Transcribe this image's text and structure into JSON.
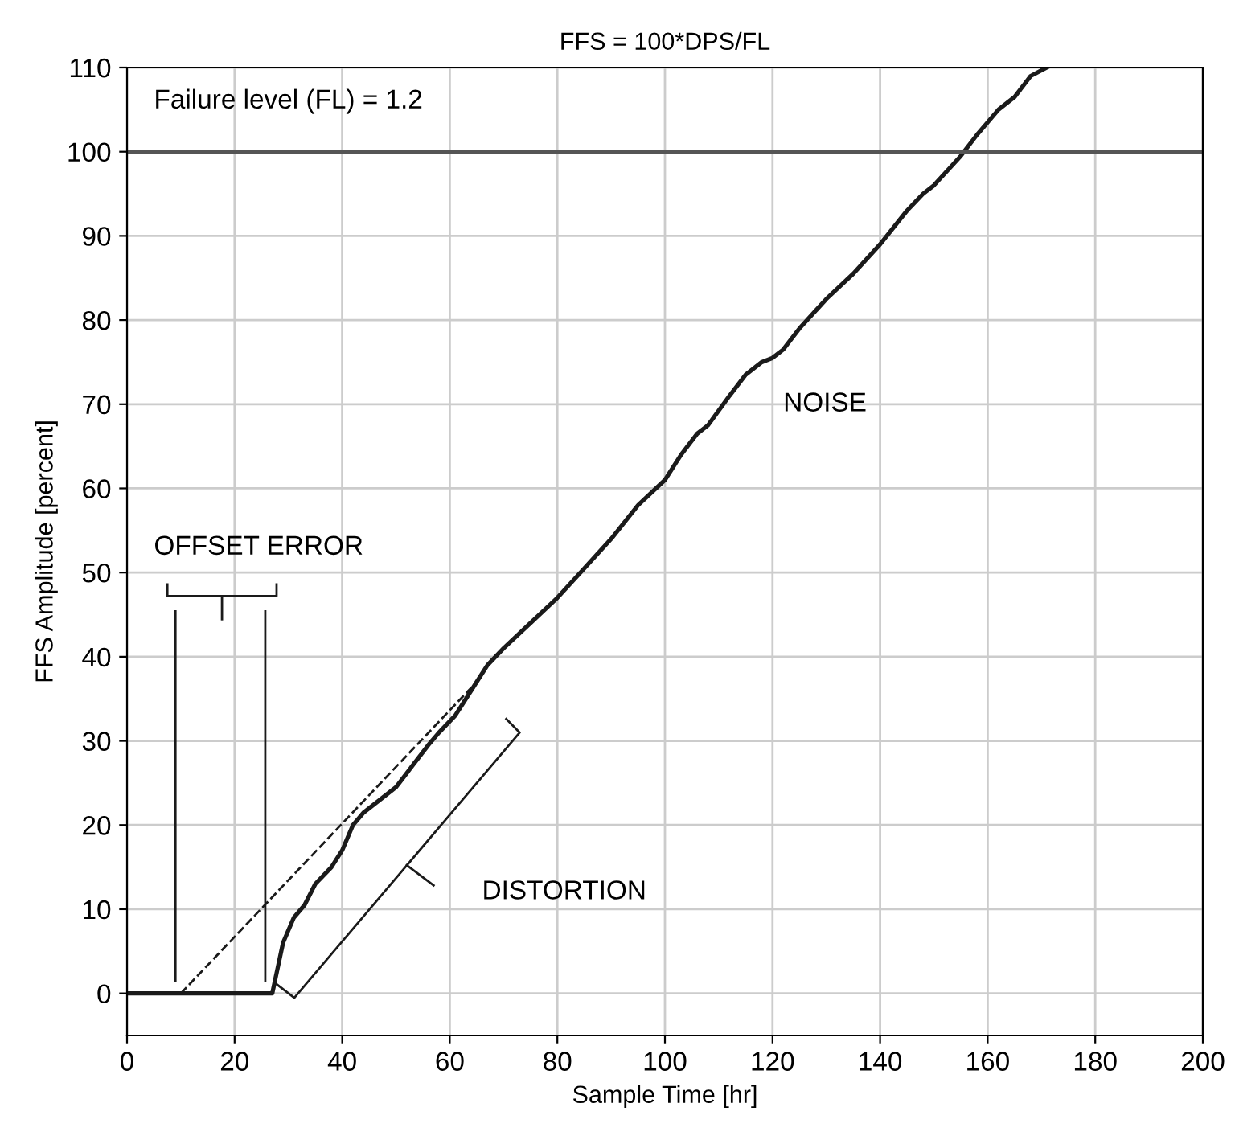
{
  "chart_data": {
    "type": "line",
    "title": "FFS = 100*DPS/FL",
    "xlabel": "Sample Time [hr]",
    "ylabel": "FFS Amplitude [percent]",
    "xlim": [
      0,
      200
    ],
    "ylim": [
      -5,
      110
    ],
    "xticks": [
      0,
      20,
      40,
      60,
      80,
      100,
      120,
      140,
      160,
      180,
      200
    ],
    "yticks": [
      0,
      10,
      20,
      30,
      40,
      50,
      60,
      70,
      80,
      90,
      100,
      110
    ],
    "grid": true,
    "marker": "none",
    "series": [
      {
        "color": "#1a1a1a",
        "line_style": "solid",
        "x": [
          0,
          27,
          28,
          29,
          31,
          33,
          35,
          38,
          40,
          42,
          44,
          47,
          50,
          53,
          56,
          58,
          61,
          63,
          65,
          67,
          70,
          75,
          80,
          85,
          90,
          95,
          100,
          103,
          106,
          108,
          112,
          115,
          118,
          120,
          122,
          125,
          130,
          135,
          140,
          145,
          148,
          150,
          155,
          158,
          162,
          165,
          168,
          171
        ],
        "values": [
          0,
          0,
          3,
          6,
          9,
          10.5,
          13,
          15,
          17,
          20,
          21.5,
          23,
          24.5,
          27,
          29.5,
          31,
          33,
          35,
          37,
          39,
          41,
          44,
          47,
          50.5,
          54,
          58,
          61,
          64,
          66.5,
          67.5,
          71,
          73.5,
          75,
          75.5,
          76.5,
          79,
          82.5,
          85.5,
          89,
          93,
          95,
          96,
          99.5,
          102,
          105,
          106.5,
          109,
          110
        ]
      },
      {
        "color": "#1a1a1a",
        "line_style": "dashed",
        "x": [
          10,
          65
        ],
        "values": [
          0,
          37
        ]
      },
      {
        "color": "#1a1a1a",
        "line_style": "solid",
        "x": [
          9,
          9
        ],
        "values": [
          1.5,
          45.4
        ]
      },
      {
        "color": "#1a1a1a",
        "line_style": "solid",
        "x": [
          25.7,
          25.7
        ],
        "values": [
          1.5,
          45.4
        ]
      }
    ],
    "ref_lines": [
      {
        "axis": "y",
        "value": 100,
        "color": "#555555",
        "line_style": "solid"
      }
    ],
    "annotations": [
      "Failure level (FL) = 1.2",
      "OFFSET ERROR",
      "NOISE",
      "DISTORTION"
    ]
  }
}
